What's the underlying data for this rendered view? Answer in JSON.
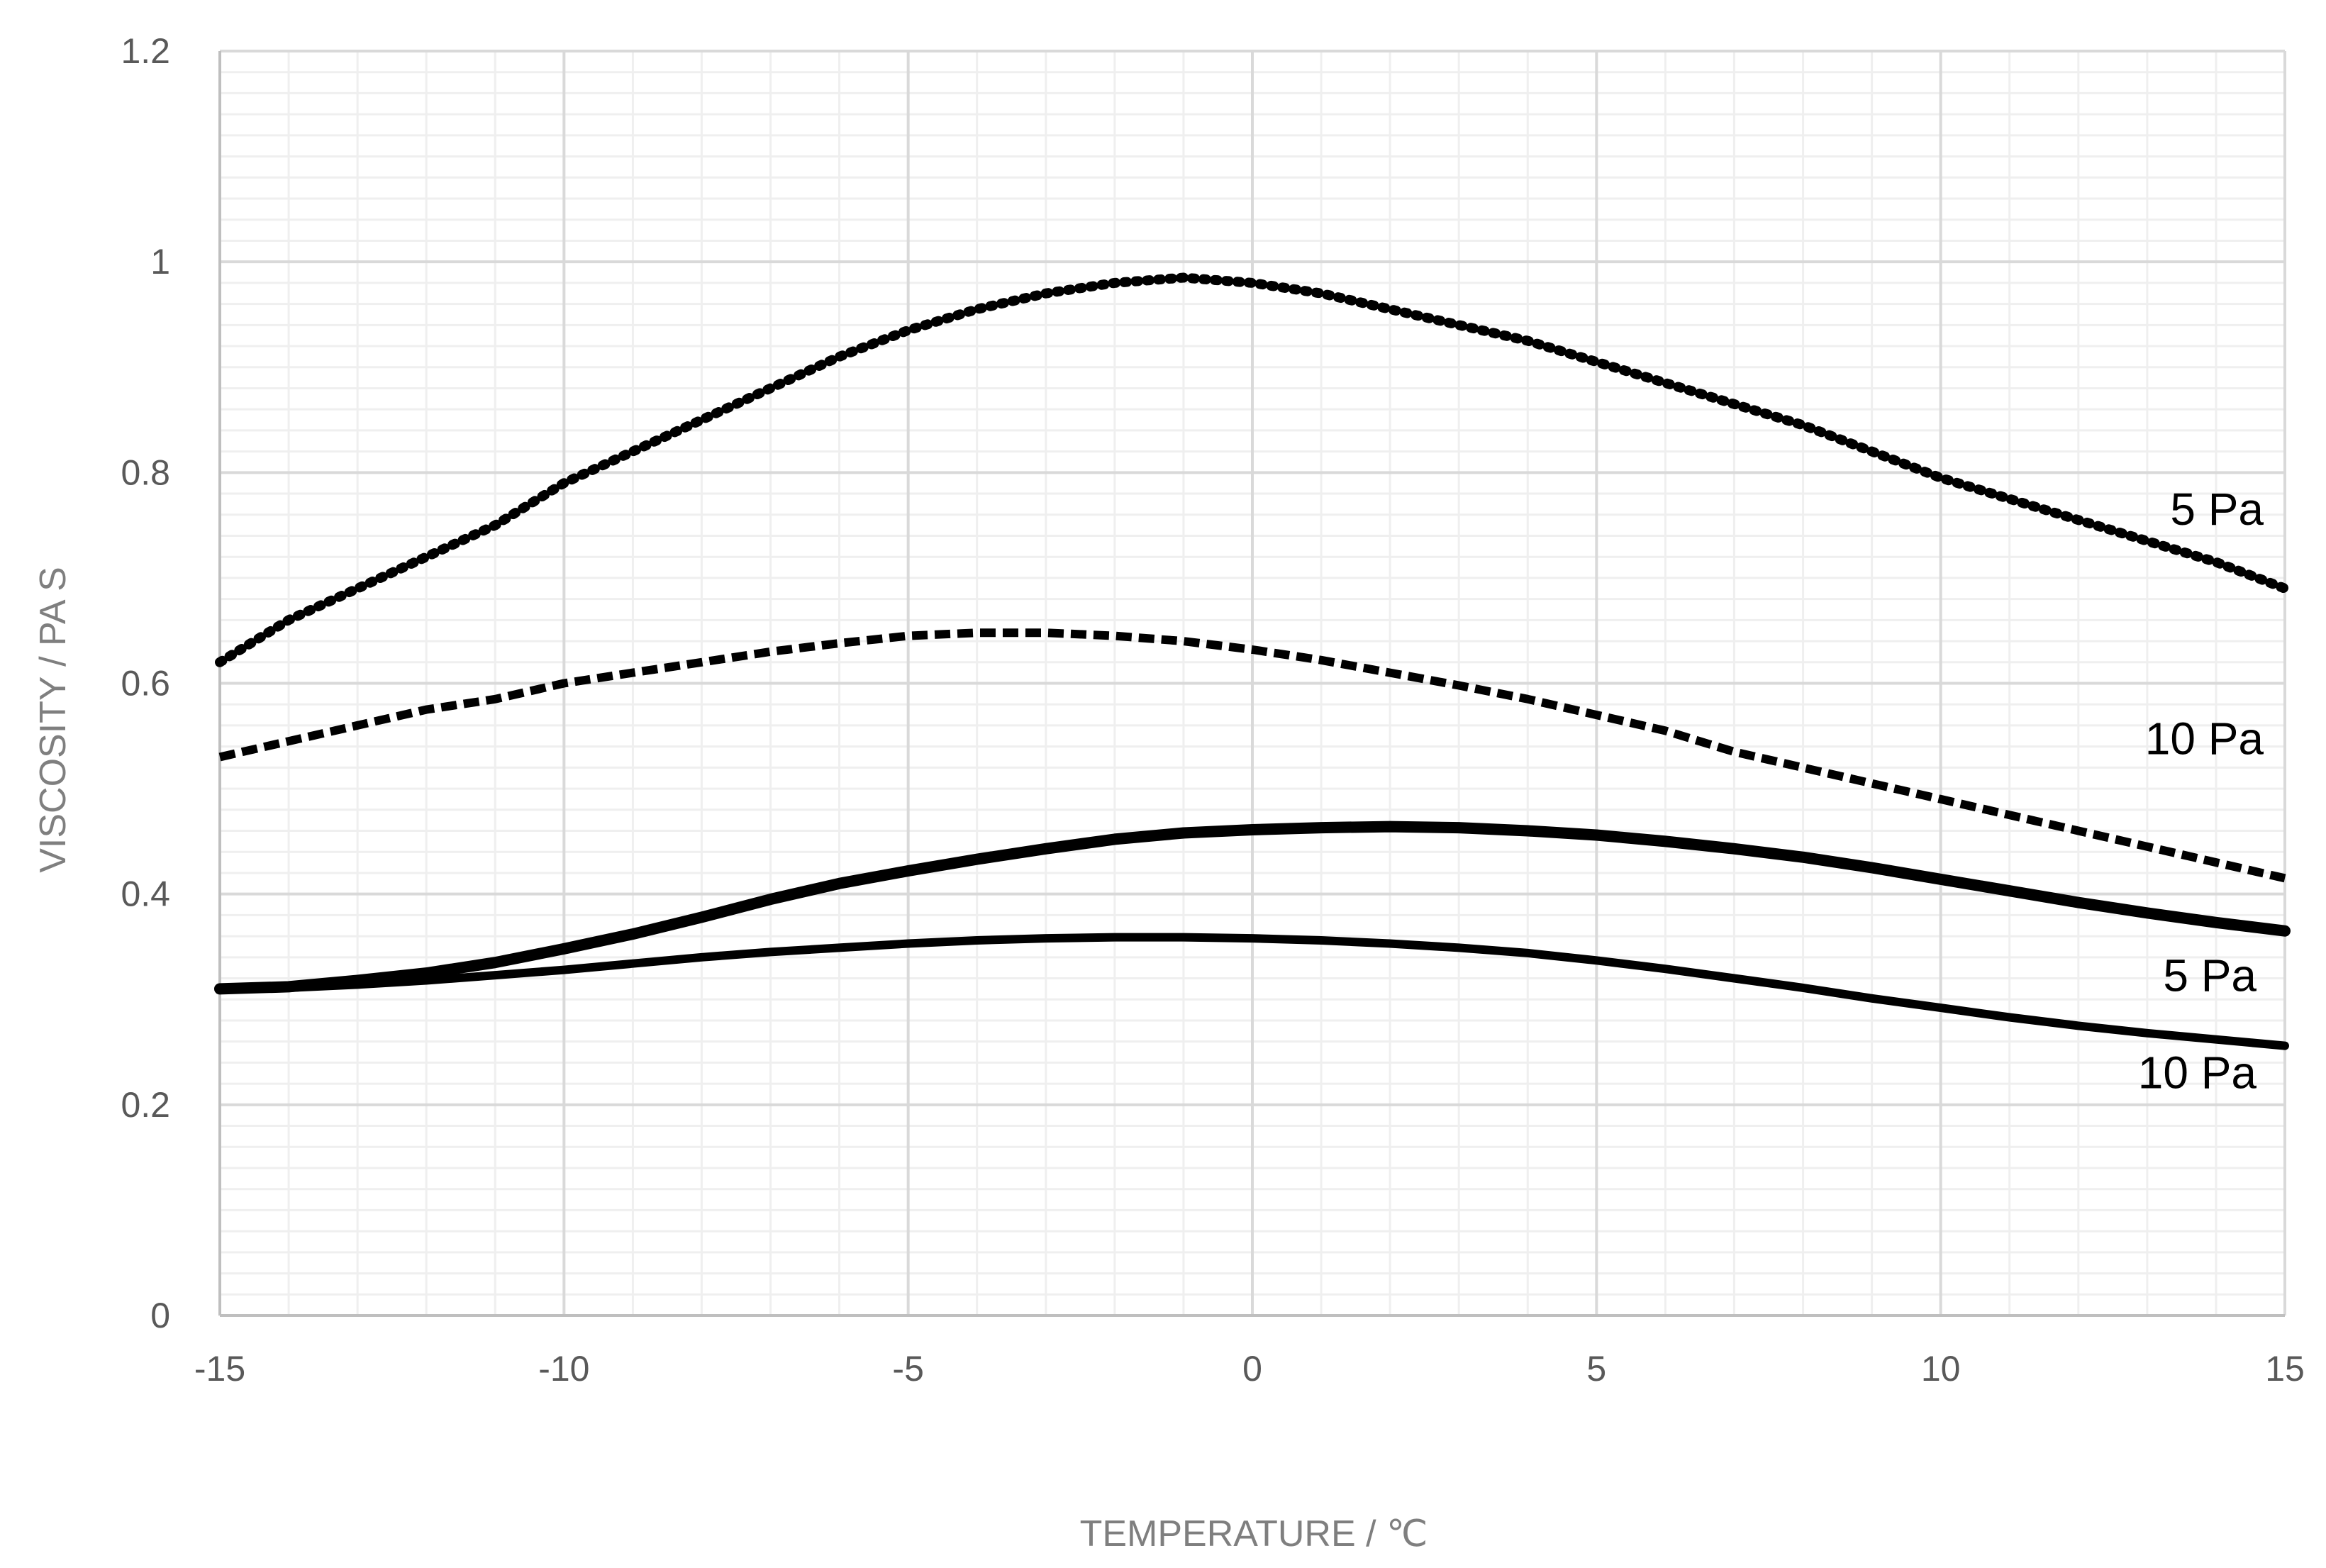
{
  "chart_data": {
    "type": "line",
    "title": "",
    "xlabel": "TEMPERATURE / ℃",
    "ylabel": "VISCOSITY / PA S",
    "xlim": [
      -15,
      15
    ],
    "ylim": [
      0,
      1.2
    ],
    "x_ticks": [
      "-15",
      "-10",
      "-5",
      "0",
      "5",
      "10",
      "15"
    ],
    "y_ticks": [
      "0",
      "0.2",
      "0.4",
      "0.6",
      "0.8",
      "1",
      "1.2"
    ],
    "grid": true,
    "minor_grid": true,
    "legend": "none",
    "x": [
      -15,
      -14,
      -13,
      -12,
      -11,
      -10,
      -9,
      -8,
      -7,
      -6,
      -5,
      -4,
      -3,
      -2,
      -1,
      0,
      1,
      2,
      3,
      4,
      5,
      6,
      7,
      8,
      9,
      10,
      11,
      12,
      13,
      14,
      15
    ],
    "series": [
      {
        "label": "5 Pa",
        "style": "dotted",
        "values": [
          0.62,
          0.66,
          0.69,
          0.72,
          0.75,
          0.79,
          0.82,
          0.85,
          0.88,
          0.91,
          0.935,
          0.955,
          0.97,
          0.98,
          0.985,
          0.98,
          0.97,
          0.955,
          0.94,
          0.925,
          0.905,
          0.885,
          0.865,
          0.845,
          0.82,
          0.795,
          0.775,
          0.755,
          0.735,
          0.715,
          0.69
        ]
      },
      {
        "label": "10 Pa",
        "style": "dashed",
        "values": [
          0.53,
          0.545,
          0.56,
          0.575,
          0.585,
          0.6,
          0.61,
          0.62,
          0.63,
          0.638,
          0.645,
          0.648,
          0.648,
          0.645,
          0.64,
          0.632,
          0.622,
          0.61,
          0.598,
          0.585,
          0.57,
          0.555,
          0.535,
          0.52,
          0.505,
          0.49,
          0.475,
          0.46,
          0.445,
          0.43,
          0.415
        ]
      },
      {
        "label": "5 Pa",
        "style": "solid-thick",
        "values": [
          0.31,
          0.312,
          0.318,
          0.325,
          0.335,
          0.348,
          0.362,
          0.378,
          0.395,
          0.41,
          0.422,
          0.433,
          0.443,
          0.452,
          0.458,
          0.461,
          0.463,
          0.464,
          0.463,
          0.46,
          0.456,
          0.45,
          0.443,
          0.435,
          0.425,
          0.414,
          0.403,
          0.392,
          0.382,
          0.373,
          0.365
        ]
      },
      {
        "label": "10 Pa",
        "style": "solid",
        "values": [
          0.31,
          0.311,
          0.314,
          0.318,
          0.323,
          0.328,
          0.334,
          0.34,
          0.345,
          0.349,
          0.353,
          0.356,
          0.358,
          0.359,
          0.359,
          0.358,
          0.356,
          0.353,
          0.349,
          0.344,
          0.337,
          0.329,
          0.32,
          0.311,
          0.301,
          0.292,
          0.283,
          0.275,
          0.268,
          0.262,
          0.256
        ]
      }
    ]
  }
}
